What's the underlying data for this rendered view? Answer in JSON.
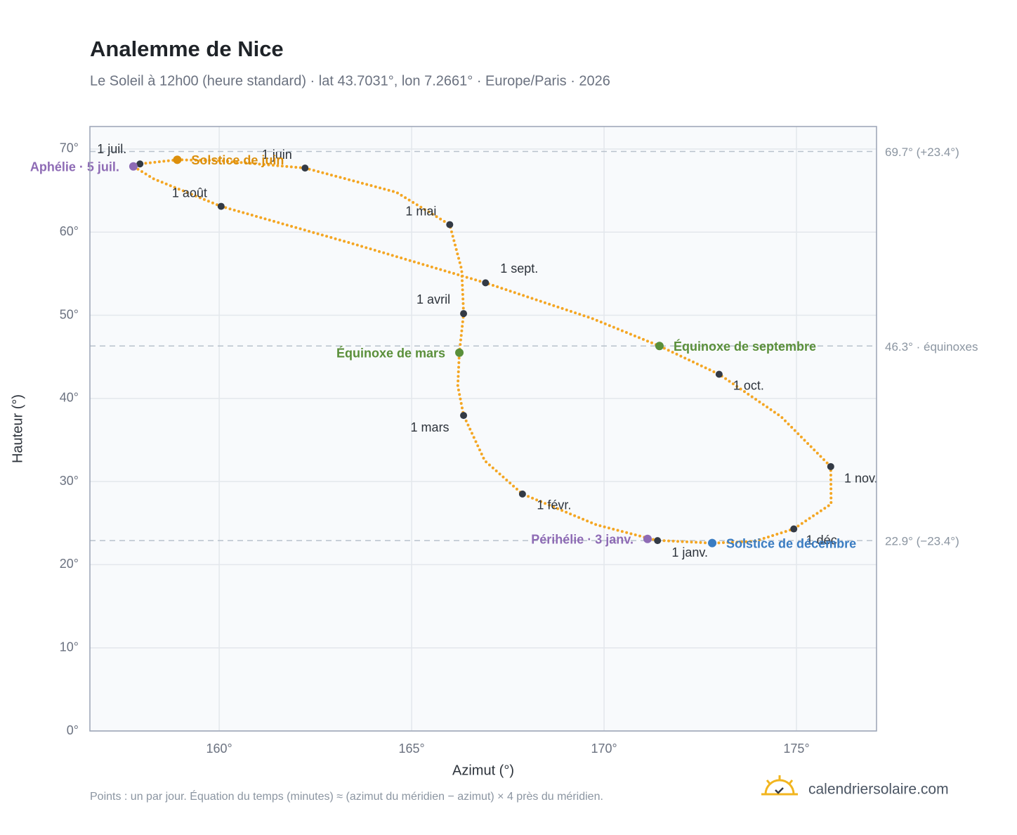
{
  "chart_data": {
    "type": "scatter",
    "title": "Analemme de Nice",
    "subtitle": "Le Soleil à 12h00 (heure standard) · lat 43.7031°, lon 7.2661° · Europe/Paris · 2026",
    "x_label": "Azimut (°)",
    "y_label": "Hauteur (°)",
    "xlim": [
      156.64,
      177.08
    ],
    "ylim": [
      0,
      72.7
    ],
    "xticks": [
      {
        "value": 160,
        "label": "160°"
      },
      {
        "value": 165,
        "label": "165°"
      },
      {
        "value": 170,
        "label": "170°"
      },
      {
        "value": 175,
        "label": "175°"
      }
    ],
    "yticks": [
      {
        "value": 0,
        "label": "0°"
      },
      {
        "value": 10,
        "label": "10°"
      },
      {
        "value": 20,
        "label": "20°"
      },
      {
        "value": 30,
        "label": "30°"
      },
      {
        "value": 40,
        "label": "40°"
      },
      {
        "value": 50,
        "label": "50°"
      },
      {
        "value": 60,
        "label": "60°"
      },
      {
        "value": 70,
        "label": "70°"
      }
    ],
    "grid": true,
    "curve": {
      "color": "#f4a623",
      "x": [
        171.39,
        169.8,
        167.88,
        166.9,
        166.35,
        166.2,
        166.24,
        166.35,
        166.3,
        165.99,
        164.6,
        162.23,
        160.0,
        158.91,
        157.94,
        157.77,
        158.3,
        160.05,
        163.4,
        166.92,
        169.7,
        171.44,
        172.99,
        174.6,
        175.89,
        175.9,
        174.93,
        173.9,
        172.81,
        171.5
      ],
      "values": [
        22.9,
        24.8,
        28.5,
        32.5,
        37.95,
        41.5,
        45.5,
        50.2,
        55.5,
        60.9,
        64.8,
        67.7,
        68.6,
        68.7,
        68.2,
        67.9,
        66.4,
        63.1,
        58.7,
        53.9,
        49.6,
        46.3,
        42.9,
        37.8,
        31.8,
        27.3,
        24.3,
        22.8,
        22.6,
        22.9
      ]
    },
    "months": {
      "color": "#333a45",
      "labels": [
        "1 janv.",
        "1 févr.",
        "1 mars",
        "1 avril",
        "1 mai",
        "1 juin",
        "1 juil.",
        "1 août",
        "1 sept.",
        "1 oct.",
        "1 nov.",
        "1 déc."
      ],
      "x": [
        171.39,
        167.88,
        166.35,
        166.35,
        165.99,
        162.23,
        157.94,
        160.05,
        166.92,
        172.99,
        175.89,
        174.93
      ],
      "values": [
        22.9,
        28.5,
        37.95,
        50.2,
        60.9,
        67.7,
        68.2,
        63.1,
        53.9,
        42.9,
        31.8,
        24.3
      ]
    },
    "events": [
      {
        "label": "Aphélie · 5 juil.",
        "color": "#8e6bb5",
        "x": 157.77,
        "y": 67.9
      },
      {
        "label": "Solstice de juin",
        "color": "#dc8f0c",
        "x": 158.91,
        "y": 68.7
      },
      {
        "label": "Équinoxe de mars",
        "color": "#5a8f3a",
        "x": 166.24,
        "y": 45.5
      },
      {
        "label": "Équinoxe de septembre",
        "color": "#5a8f3a",
        "x": 171.44,
        "y": 46.3
      },
      {
        "label": "Périhélie · 3 janv.",
        "color": "#8e6bb5",
        "x": 171.13,
        "y": 23.1
      },
      {
        "label": "Solstice de décembre",
        "color": "#3a7cc2",
        "x": 172.81,
        "y": 22.6
      }
    ],
    "reference_lines": [
      {
        "value": 69.7,
        "label": "69.7° (+23.4°)"
      },
      {
        "value": 46.3,
        "label": "46.3° · équinoxes"
      },
      {
        "value": 22.9,
        "label": "22.9° (−23.4°)"
      }
    ],
    "footnote": "Points : un par jour. Équation du temps (minutes) ≈ (azimut du méridien − azimut) × 4 près du méridien.",
    "brand": "calendriersolaire.com"
  }
}
